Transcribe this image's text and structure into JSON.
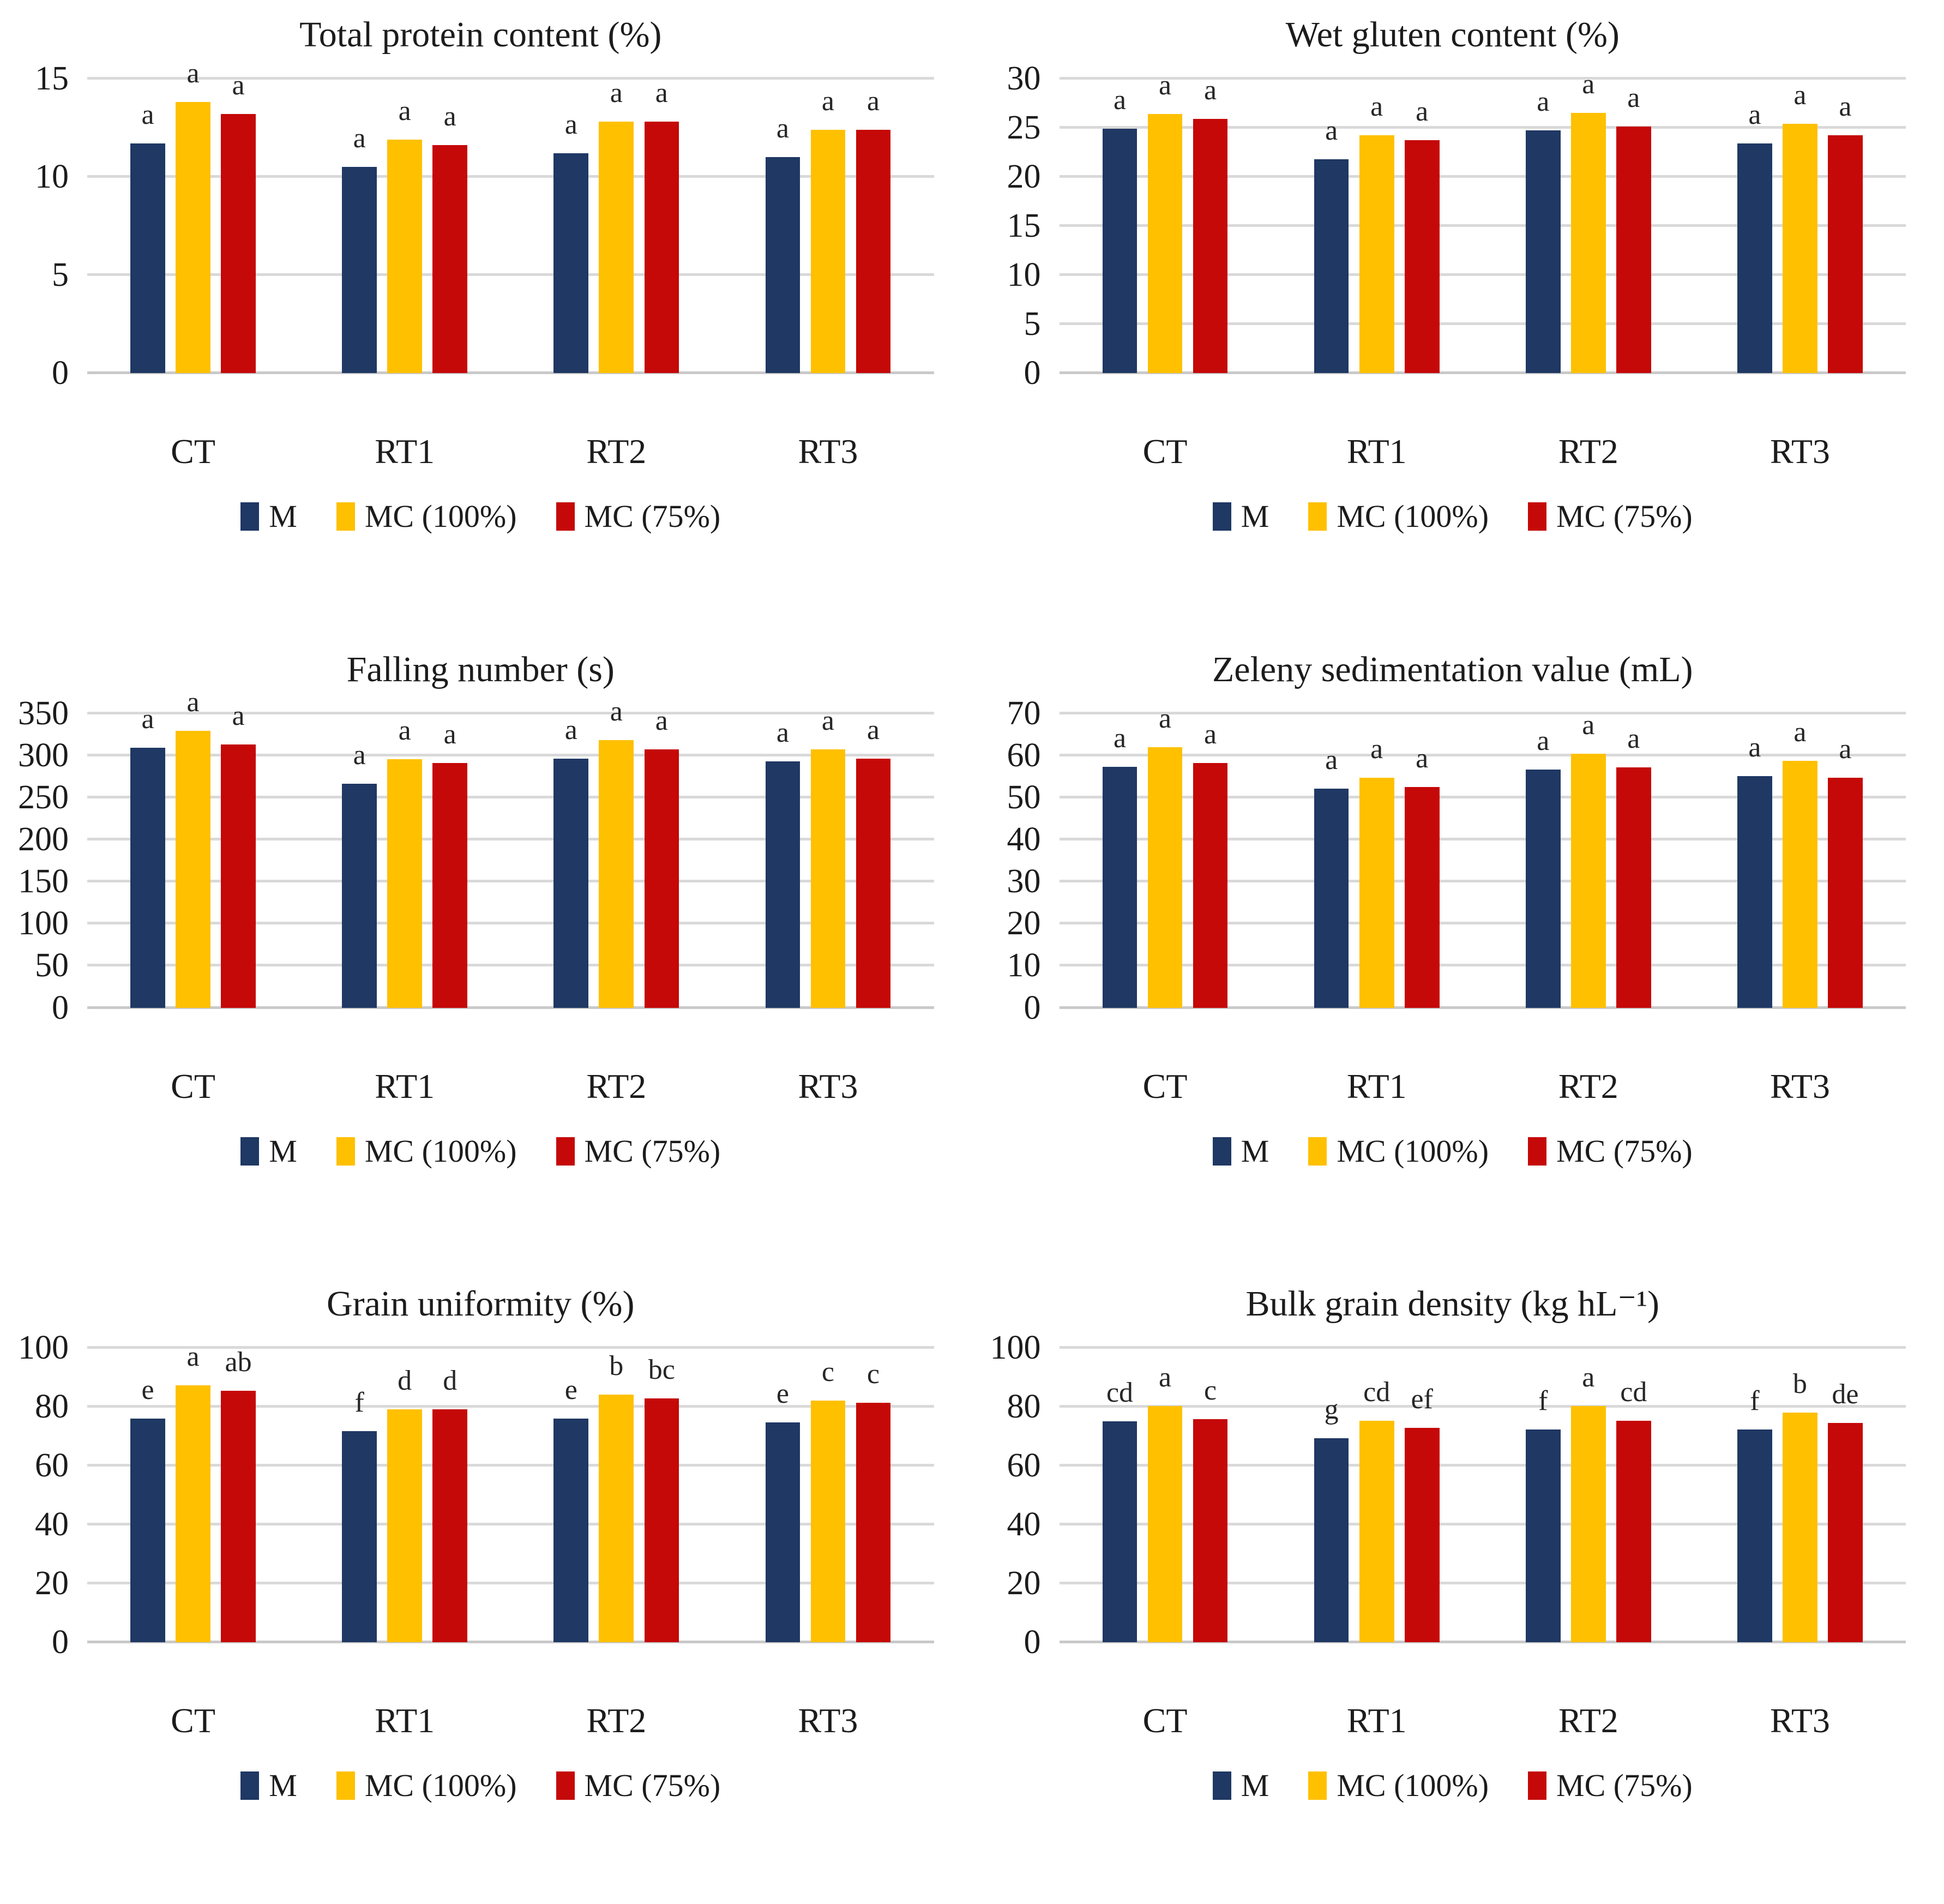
{
  "figure": {
    "background": "#FFFFFF",
    "gridline_color": "#D9D9D9",
    "zero_line_color": "#C9C9C9"
  },
  "categories": [
    "CT",
    "RT1",
    "RT2",
    "RT3"
  ],
  "legend_labels": [
    "M",
    "MC (100%)",
    "MC (75%)"
  ],
  "series_colors": {
    "M": "#1F3864",
    "MC (100%)": "#FFC000",
    "MC (75%)": "#C50808"
  },
  "chart_data": [
    {
      "id": "total-protein-content",
      "type": "bar",
      "title": "Total protein content (%)",
      "xlabel": "",
      "ylabel": "",
      "ylim": [
        0,
        15
      ],
      "yticks": [
        0,
        5,
        10,
        15
      ],
      "grid": true,
      "legend_position": "bottom",
      "categories": [
        "CT",
        "RT1",
        "RT2",
        "RT3"
      ],
      "series": [
        {
          "name": "M",
          "color": "#1F3864",
          "values": [
            11.7,
            10.5,
            11.2,
            11.0
          ],
          "letters": [
            "a",
            "a",
            "a",
            "a"
          ]
        },
        {
          "name": "MC (100%)",
          "color": "#FFC000",
          "values": [
            13.8,
            11.9,
            12.8,
            12.4
          ],
          "letters": [
            "a",
            "a",
            "a",
            "a"
          ]
        },
        {
          "name": "MC (75%)",
          "color": "#C50808",
          "values": [
            13.2,
            11.6,
            12.8,
            12.4
          ],
          "letters": [
            "a",
            "a",
            "a",
            "a"
          ]
        }
      ]
    },
    {
      "id": "wet-gluten-content",
      "type": "bar",
      "title": "Wet gluten content (%)",
      "xlabel": "",
      "ylabel": "",
      "ylim": [
        0,
        30
      ],
      "yticks": [
        0,
        5,
        10,
        15,
        20,
        25,
        30
      ],
      "grid": true,
      "legend_position": "bottom",
      "categories": [
        "CT",
        "RT1",
        "RT2",
        "RT3"
      ],
      "series": [
        {
          "name": "M",
          "color": "#1F3864",
          "values": [
            24.9,
            21.8,
            24.7,
            23.4
          ],
          "letters": [
            "a",
            "a",
            "a",
            "a"
          ]
        },
        {
          "name": "MC (100%)",
          "color": "#FFC000",
          "values": [
            26.4,
            24.2,
            26.5,
            25.4
          ],
          "letters": [
            "a",
            "a",
            "a",
            "a"
          ]
        },
        {
          "name": "MC (75%)",
          "color": "#C50808",
          "values": [
            25.9,
            23.7,
            25.1,
            24.2
          ],
          "letters": [
            "a",
            "a",
            "a",
            "a"
          ]
        }
      ]
    },
    {
      "id": "falling-number",
      "type": "bar",
      "title": "Falling number (s)",
      "xlabel": "",
      "ylabel": "",
      "ylim": [
        0,
        350
      ],
      "yticks": [
        0,
        50,
        100,
        150,
        200,
        250,
        300,
        350
      ],
      "grid": true,
      "legend_position": "bottom",
      "categories": [
        "CT",
        "RT1",
        "RT2",
        "RT3"
      ],
      "series": [
        {
          "name": "M",
          "color": "#1F3864",
          "values": [
            309,
            266,
            296,
            293
          ],
          "letters": [
            "a",
            "a",
            "a",
            "a"
          ]
        },
        {
          "name": "MC (100%)",
          "color": "#FFC000",
          "values": [
            329,
            295,
            318,
            307
          ],
          "letters": [
            "a",
            "a",
            "a",
            "a"
          ]
        },
        {
          "name": "MC (75%)",
          "color": "#C50808",
          "values": [
            313,
            291,
            307,
            296
          ],
          "letters": [
            "a",
            "a",
            "a",
            "a"
          ]
        }
      ]
    },
    {
      "id": "zeleny-sedimentation-value",
      "type": "bar",
      "title": "Zeleny sedimentation value (mL)",
      "xlabel": "",
      "ylabel": "",
      "ylim": [
        0,
        70
      ],
      "yticks": [
        0,
        10,
        20,
        30,
        40,
        50,
        60,
        70
      ],
      "grid": true,
      "legend_position": "bottom",
      "categories": [
        "CT",
        "RT1",
        "RT2",
        "RT3"
      ],
      "series": [
        {
          "name": "M",
          "color": "#1F3864",
          "values": [
            57.2,
            52.0,
            56.6,
            55.0
          ],
          "letters": [
            "a",
            "a",
            "a",
            "a"
          ]
        },
        {
          "name": "MC (100%)",
          "color": "#FFC000",
          "values": [
            61.9,
            54.6,
            60.3,
            58.7
          ],
          "letters": [
            "a",
            "a",
            "a",
            "a"
          ]
        },
        {
          "name": "MC (75%)",
          "color": "#C50808",
          "values": [
            58.2,
            52.5,
            57.1,
            54.7
          ],
          "letters": [
            "a",
            "a",
            "a",
            "a"
          ]
        }
      ]
    },
    {
      "id": "grain-uniformity",
      "type": "bar",
      "title": "Grain uniformity (%)",
      "xlabel": "",
      "ylabel": "",
      "ylim": [
        0,
        100
      ],
      "yticks": [
        0,
        20,
        40,
        60,
        80,
        100
      ],
      "grid": true,
      "legend_position": "bottom",
      "categories": [
        "CT",
        "RT1",
        "RT2",
        "RT3"
      ],
      "series": [
        {
          "name": "M",
          "color": "#1F3864",
          "values": [
            76.0,
            71.8,
            76.0,
            74.6
          ],
          "letters": [
            "e",
            "f",
            "e",
            "e"
          ]
        },
        {
          "name": "MC (100%)",
          "color": "#FFC000",
          "values": [
            87.2,
            79.2,
            84.2,
            82.0
          ],
          "letters": [
            "a",
            "d",
            "b",
            "c"
          ]
        },
        {
          "name": "MC (75%)",
          "color": "#C50808",
          "values": [
            85.4,
            79.2,
            82.8,
            81.4
          ],
          "letters": [
            "ab",
            "d",
            "bc",
            "c"
          ]
        }
      ]
    },
    {
      "id": "bulk-grain-density",
      "type": "bar",
      "title": "Bulk grain density (kg hL⁻¹)",
      "xlabel": "",
      "ylabel": "",
      "ylim": [
        0,
        100
      ],
      "yticks": [
        0,
        20,
        40,
        60,
        80,
        100
      ],
      "grid": true,
      "legend_position": "bottom",
      "categories": [
        "CT",
        "RT1",
        "RT2",
        "RT3"
      ],
      "series": [
        {
          "name": "M",
          "color": "#1F3864",
          "values": [
            75.0,
            69.3,
            72.2,
            72.2
          ],
          "letters": [
            "cd",
            "g",
            "f",
            "f"
          ]
        },
        {
          "name": "MC (100%)",
          "color": "#FFC000",
          "values": [
            80.2,
            75.2,
            80.2,
            78.0
          ],
          "letters": [
            "a",
            "cd",
            "a",
            "b"
          ]
        },
        {
          "name": "MC (75%)",
          "color": "#C50808",
          "values": [
            75.8,
            72.8,
            75.3,
            74.4
          ],
          "letters": [
            "c",
            "ef",
            "cd",
            "de"
          ]
        }
      ]
    }
  ]
}
